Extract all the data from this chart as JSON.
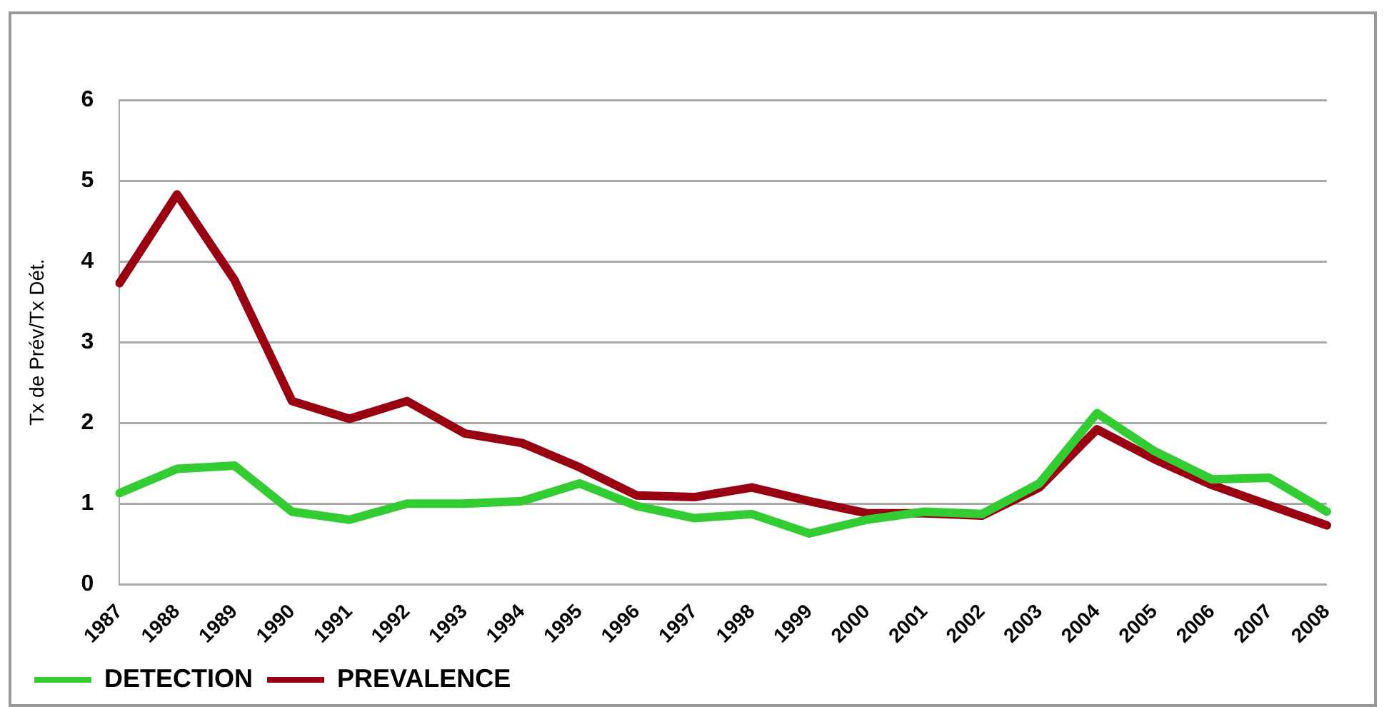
{
  "chart_data": {
    "type": "line",
    "ylabel": "Tx de Prév/Tx Dét.",
    "categories": [
      "1987",
      "1988",
      "1989",
      "1990",
      "1991",
      "1992",
      "1993",
      "1994",
      "1995",
      "1996",
      "1997",
      "1998",
      "1999",
      "2000",
      "2001",
      "2002",
      "2003",
      "2004",
      "2005",
      "2006",
      "2007",
      "2008"
    ],
    "series": [
      {
        "name": "DETECTION",
        "color": "#33cc33",
        "values": [
          1.13,
          1.43,
          1.47,
          0.9,
          0.8,
          1.0,
          1.0,
          1.03,
          1.25,
          0.97,
          0.82,
          0.87,
          0.63,
          0.8,
          0.9,
          0.87,
          1.25,
          2.12,
          1.65,
          1.3,
          1.32,
          0.9
        ]
      },
      {
        "name": "PREVALENCE",
        "color": "#990011",
        "values": [
          3.73,
          4.83,
          3.77,
          2.27,
          2.05,
          2.27,
          1.87,
          1.75,
          1.45,
          1.1,
          1.08,
          1.2,
          1.03,
          0.88,
          0.88,
          0.85,
          1.2,
          1.92,
          1.55,
          1.23,
          0.98,
          0.73
        ]
      }
    ],
    "ylim": [
      0,
      6
    ],
    "yticks": [
      0,
      1,
      2,
      3,
      4,
      5,
      6
    ],
    "grid": "y",
    "legend": "bottom left",
    "marker": "none",
    "line_style": "solid"
  }
}
